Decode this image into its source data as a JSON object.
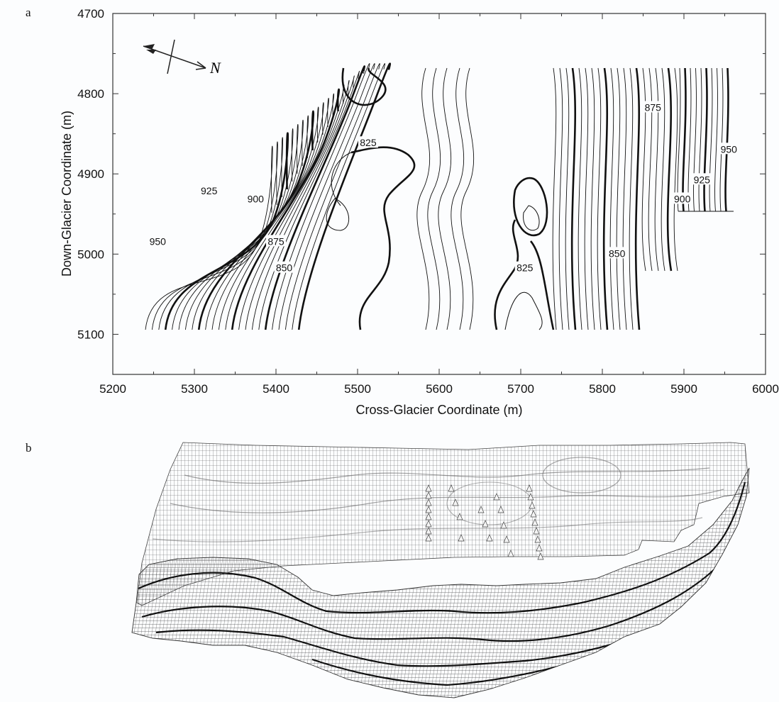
{
  "figure": {
    "panel_a_label": "a",
    "panel_b_label": "b",
    "north_label": "N"
  },
  "chart_data": {
    "type": "contour",
    "xlabel": "Cross-Glacier Coordinate (m)",
    "ylabel": "Down-Glacier Coordinate (m)",
    "xlim": [
      5200,
      6000
    ],
    "ylim": [
      4700,
      5150
    ],
    "y_inverted": true,
    "xticks": [
      5200,
      5300,
      5400,
      5500,
      5600,
      5700,
      5800,
      5900,
      6000
    ],
    "yticks": [
      4700,
      4800,
      4900,
      5000,
      5100
    ],
    "contour_interval": 5,
    "index_contour_interval": 25,
    "contour_labels": [
      {
        "value": 950,
        "x": 5255,
        "y": 4985
      },
      {
        "value": 925,
        "x": 5318,
        "y": 4922
      },
      {
        "value": 900,
        "x": 5375,
        "y": 4932
      },
      {
        "value": 875,
        "x": 5400,
        "y": 4985
      },
      {
        "value": 850,
        "x": 5410,
        "y": 5018
      },
      {
        "value": 825,
        "x": 5513,
        "y": 4862
      },
      {
        "value": 825,
        "x": 5705,
        "y": 5018
      },
      {
        "value": 850,
        "x": 5818,
        "y": 5000
      },
      {
        "value": 875,
        "x": 5862,
        "y": 4818
      },
      {
        "value": 900,
        "x": 5898,
        "y": 4932
      },
      {
        "value": 925,
        "x": 5922,
        "y": 4908
      },
      {
        "value": 950,
        "x": 5955,
        "y": 4870
      }
    ]
  }
}
